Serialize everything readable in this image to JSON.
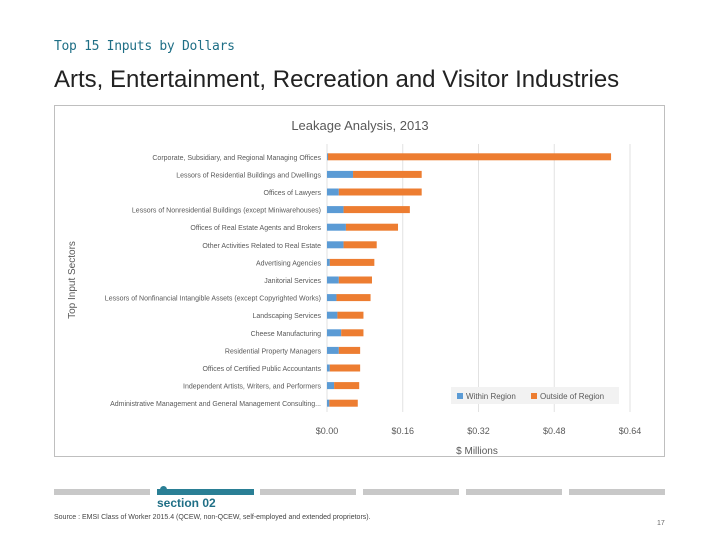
{
  "header": {
    "kicker": "Top 15 Inputs by Dollars",
    "title": "Arts, Entertainment, Recreation and Visitor Industries"
  },
  "chart_data": {
    "type": "bar",
    "orientation": "horizontal",
    "stacked": true,
    "title": "Leakage Analysis, 2013",
    "xlabel": "$ Millions",
    "ylabel": "Top Input Sectors",
    "xlim": [
      0,
      0.64
    ],
    "xticks": [
      "$0.00",
      "$0.16",
      "$0.32",
      "$0.48",
      "$0.64"
    ],
    "xtick_values": [
      0,
      0.16,
      0.32,
      0.48,
      0.64
    ],
    "grid": true,
    "legend": "bottom-right",
    "categories": [
      "Corporate, Subsidiary, and Regional Managing Offices",
      "Lessors of Residential Buildings and Dwellings",
      "Offices of Lawyers",
      "Lessors of Nonresidential Buildings (except Miniwarehouses)",
      "Offices of Real Estate Agents and Brokers",
      "Other Activities Related to Real Estate",
      "Advertising Agencies",
      "Janitorial Services",
      "Lessors of Nonfinancial Intangible Assets (except Copyrighted Works)",
      "Landscaping Services",
      "Cheese Manufacturing",
      "Residential Property Managers",
      "Offices of Certified Public Accountants",
      "Independent Artists, Writers, and Performers",
      "Administrative Management and General Management Consulting..."
    ],
    "series": [
      {
        "name": "Within Region",
        "color": "#5b9bd5",
        "values": [
          0.002,
          0.055,
          0.025,
          0.035,
          0.04,
          0.035,
          0.006,
          0.025,
          0.02,
          0.022,
          0.03,
          0.025,
          0.006,
          0.015,
          0.005
        ]
      },
      {
        "name": "Outside of Region",
        "color": "#ed7d31",
        "values": [
          0.598,
          0.145,
          0.175,
          0.14,
          0.11,
          0.07,
          0.094,
          0.07,
          0.072,
          0.055,
          0.047,
          0.045,
          0.064,
          0.053,
          0.06
        ]
      }
    ]
  },
  "footer": {
    "section": "section 02",
    "source": "Source : EMSI Class of Worker 2015.4 (QCEW, non-QCEW, self-employed and extended proprietors).",
    "page": "17"
  },
  "colors": {
    "accent": "#2a7f95",
    "progress_inactive": "#c8c8c8"
  }
}
